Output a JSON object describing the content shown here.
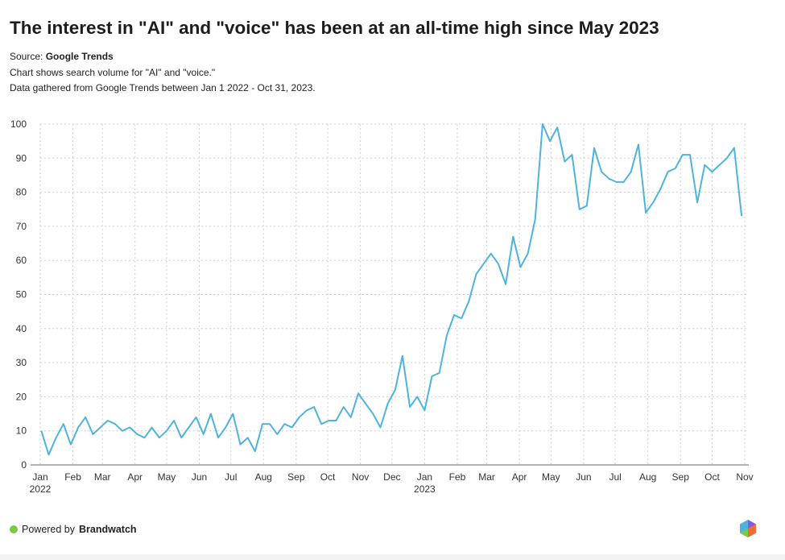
{
  "title": "The interest in \"AI\" and \"voice\" has been at an all-time high since May 2023",
  "source_label": "Source:",
  "source_name": "Google Trends",
  "notes": [
    "Chart shows search volume for \"AI\" and \"voice.\"",
    "Data gathered from Google Trends between Jan 1 2022 - Oct 31, 2023."
  ],
  "footer": {
    "powered_by": "Powered by",
    "brand": "Brandwatch",
    "dot_color": "#7ac943"
  },
  "chart_data": {
    "type": "line",
    "line_color": "#4fb3dc",
    "grid": true,
    "ylim": [
      0,
      100
    ],
    "yticks": [
      0,
      10,
      20,
      30,
      40,
      50,
      60,
      70,
      80,
      90,
      100
    ],
    "xlim": [
      "2022-01-01",
      "2023-11-01"
    ],
    "xticks": [
      {
        "date": "2022-01-01",
        "label": "Jan",
        "year": "2022"
      },
      {
        "date": "2022-02-01",
        "label": "Feb"
      },
      {
        "date": "2022-03-01",
        "label": "Mar"
      },
      {
        "date": "2022-04-01",
        "label": "Apr"
      },
      {
        "date": "2022-05-01",
        "label": "May"
      },
      {
        "date": "2022-06-01",
        "label": "Jun"
      },
      {
        "date": "2022-07-01",
        "label": "Jul"
      },
      {
        "date": "2022-08-01",
        "label": "Aug"
      },
      {
        "date": "2022-09-01",
        "label": "Sep"
      },
      {
        "date": "2022-10-01",
        "label": "Oct"
      },
      {
        "date": "2022-11-01",
        "label": "Nov"
      },
      {
        "date": "2022-12-01",
        "label": "Dec"
      },
      {
        "date": "2023-01-01",
        "label": "Jan",
        "year": "2023"
      },
      {
        "date": "2023-02-01",
        "label": "Feb"
      },
      {
        "date": "2023-03-01",
        "label": "Mar"
      },
      {
        "date": "2023-04-01",
        "label": "Apr"
      },
      {
        "date": "2023-05-01",
        "label": "May"
      },
      {
        "date": "2023-06-01",
        "label": "Jun"
      },
      {
        "date": "2023-07-01",
        "label": "Jul"
      },
      {
        "date": "2023-08-01",
        "label": "Aug"
      },
      {
        "date": "2023-09-01",
        "label": "Sep"
      },
      {
        "date": "2023-10-01",
        "label": "Oct"
      },
      {
        "date": "2023-11-01",
        "label": "Nov"
      }
    ],
    "x": [
      "2022-01-02",
      "2022-01-09",
      "2022-01-16",
      "2022-01-23",
      "2022-01-30",
      "2022-02-06",
      "2022-02-13",
      "2022-02-20",
      "2022-02-27",
      "2022-03-06",
      "2022-03-13",
      "2022-03-20",
      "2022-03-27",
      "2022-04-03",
      "2022-04-10",
      "2022-04-17",
      "2022-04-24",
      "2022-05-01",
      "2022-05-08",
      "2022-05-15",
      "2022-05-22",
      "2022-05-29",
      "2022-06-05",
      "2022-06-12",
      "2022-06-19",
      "2022-06-26",
      "2022-07-03",
      "2022-07-10",
      "2022-07-17",
      "2022-07-24",
      "2022-07-31",
      "2022-08-07",
      "2022-08-14",
      "2022-08-21",
      "2022-08-28",
      "2022-09-04",
      "2022-09-11",
      "2022-09-18",
      "2022-09-25",
      "2022-10-02",
      "2022-10-09",
      "2022-10-16",
      "2022-10-23",
      "2022-10-30",
      "2022-11-06",
      "2022-11-13",
      "2022-11-20",
      "2022-11-27",
      "2022-12-04",
      "2022-12-11",
      "2022-12-18",
      "2022-12-25",
      "2023-01-01",
      "2023-01-08",
      "2023-01-15",
      "2023-01-22",
      "2023-01-29",
      "2023-02-05",
      "2023-02-12",
      "2023-02-19",
      "2023-02-26",
      "2023-03-05",
      "2023-03-12",
      "2023-03-19",
      "2023-03-26",
      "2023-04-02",
      "2023-04-09",
      "2023-04-16",
      "2023-04-23",
      "2023-04-30",
      "2023-05-07",
      "2023-05-14",
      "2023-05-21",
      "2023-05-28",
      "2023-06-04",
      "2023-06-11",
      "2023-06-18",
      "2023-06-25",
      "2023-07-02",
      "2023-07-09",
      "2023-07-16",
      "2023-07-23",
      "2023-07-30",
      "2023-08-06",
      "2023-08-13",
      "2023-08-20",
      "2023-08-27",
      "2023-09-03",
      "2023-09-10",
      "2023-09-17",
      "2023-09-24",
      "2023-10-01",
      "2023-10-08",
      "2023-10-15",
      "2023-10-22",
      "2023-10-29"
    ],
    "values": [
      10,
      3,
      8,
      12,
      6,
      11,
      14,
      9,
      11,
      13,
      12,
      10,
      11,
      9,
      8,
      11,
      8,
      10,
      13,
      8,
      11,
      14,
      9,
      15,
      8,
      11,
      15,
      6,
      8,
      4,
      12,
      12,
      9,
      12,
      11,
      14,
      16,
      17,
      12,
      13,
      13,
      17,
      14,
      21,
      18,
      15,
      11,
      18,
      22,
      32,
      17,
      20,
      16,
      26,
      27,
      38,
      44,
      43,
      48,
      56,
      59,
      62,
      59,
      53,
      67,
      58,
      62,
      72,
      100,
      95,
      99,
      89,
      91,
      75,
      76,
      93,
      86,
      84,
      83,
      83,
      86,
      94,
      74,
      77,
      81,
      86,
      87,
      91,
      91,
      77,
      88,
      86,
      88,
      90,
      93,
      73
    ]
  }
}
